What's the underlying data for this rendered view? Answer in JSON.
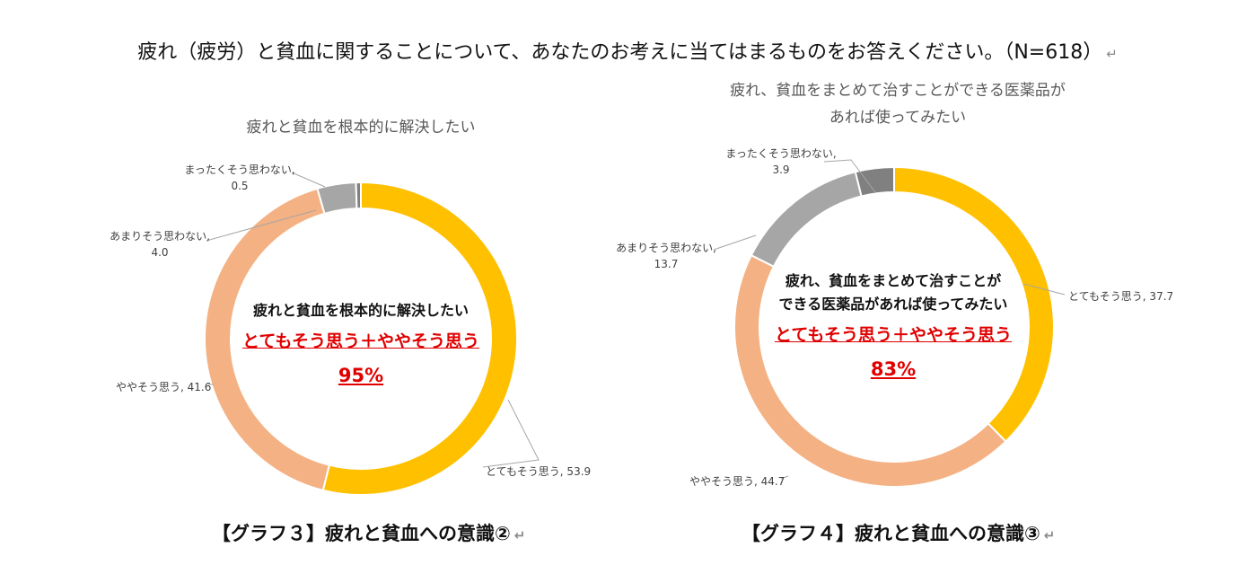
{
  "page": {
    "title": "疲れ（疲労）と貧血に関することについて、あなたのお考えに当てはまるものをお答えください。（N=618）",
    "return_mark": "↵"
  },
  "colors": {
    "very": "#FFC000",
    "somewhat": "#F4B183",
    "not_much": "#A6A6A6",
    "not_at_all": "#808080",
    "leader": "#A6A6A6",
    "highlight": "#E00000"
  },
  "chart_data": [
    {
      "type": "pie",
      "variant": "donut",
      "title": "疲れと貧血を根本的に解決したい",
      "caption": "【グラフ３】疲れと貧血への意識②",
      "center": {
        "label": "疲れと貧血を根本的に解決したい",
        "sub": "とてもそう思う＋ややそう思う",
        "value": "95%"
      },
      "slices": [
        {
          "label": "とてもそう思う",
          "value": 53.9,
          "color": "#FFC000",
          "text_line1": "とてもそう思う, 53.9",
          "text_line2": ""
        },
        {
          "label": "ややそう思う",
          "value": 41.6,
          "color": "#F4B183",
          "text_line1": "ややそう思う, 41.6",
          "text_line2": ""
        },
        {
          "label": "あまりそう思わない",
          "value": 4.0,
          "color": "#A6A6A6",
          "text_line1": "あまりそう思わない,",
          "text_line2": "4.0"
        },
        {
          "label": "まったくそう思わない",
          "value": 0.5,
          "color": "#808080",
          "text_line1": "まったくそう思わない,",
          "text_line2": "0.5"
        }
      ]
    },
    {
      "type": "pie",
      "variant": "donut",
      "title_line1": "疲れ、貧血をまとめて治すことができる医薬品が",
      "title_line2": "あれば使ってみたい",
      "caption": "【グラフ４】疲れと貧血への意識③",
      "center": {
        "label_line1": "疲れ、貧血をまとめて治すことが",
        "label_line2": "できる医薬品があれば使ってみたい",
        "sub": "とてもそう思う＋ややそう思う",
        "value": "83%"
      },
      "slices": [
        {
          "label": "とてもそう思う",
          "value": 37.7,
          "color": "#FFC000",
          "text_line1": "とてもそう思う, 37.7",
          "text_line2": ""
        },
        {
          "label": "ややそう思う",
          "value": 44.7,
          "color": "#F4B183",
          "text_line1": "ややそう思う, 44.7",
          "text_line2": ""
        },
        {
          "label": "あまりそう思わない",
          "value": 13.7,
          "color": "#A6A6A6",
          "text_line1": "あまりそう思わない,",
          "text_line2": "13.7"
        },
        {
          "label": "まったくそう思わない",
          "value": 3.9,
          "color": "#808080",
          "text_line1": "まったくそう思わない,",
          "text_line2": "3.9"
        }
      ]
    }
  ]
}
